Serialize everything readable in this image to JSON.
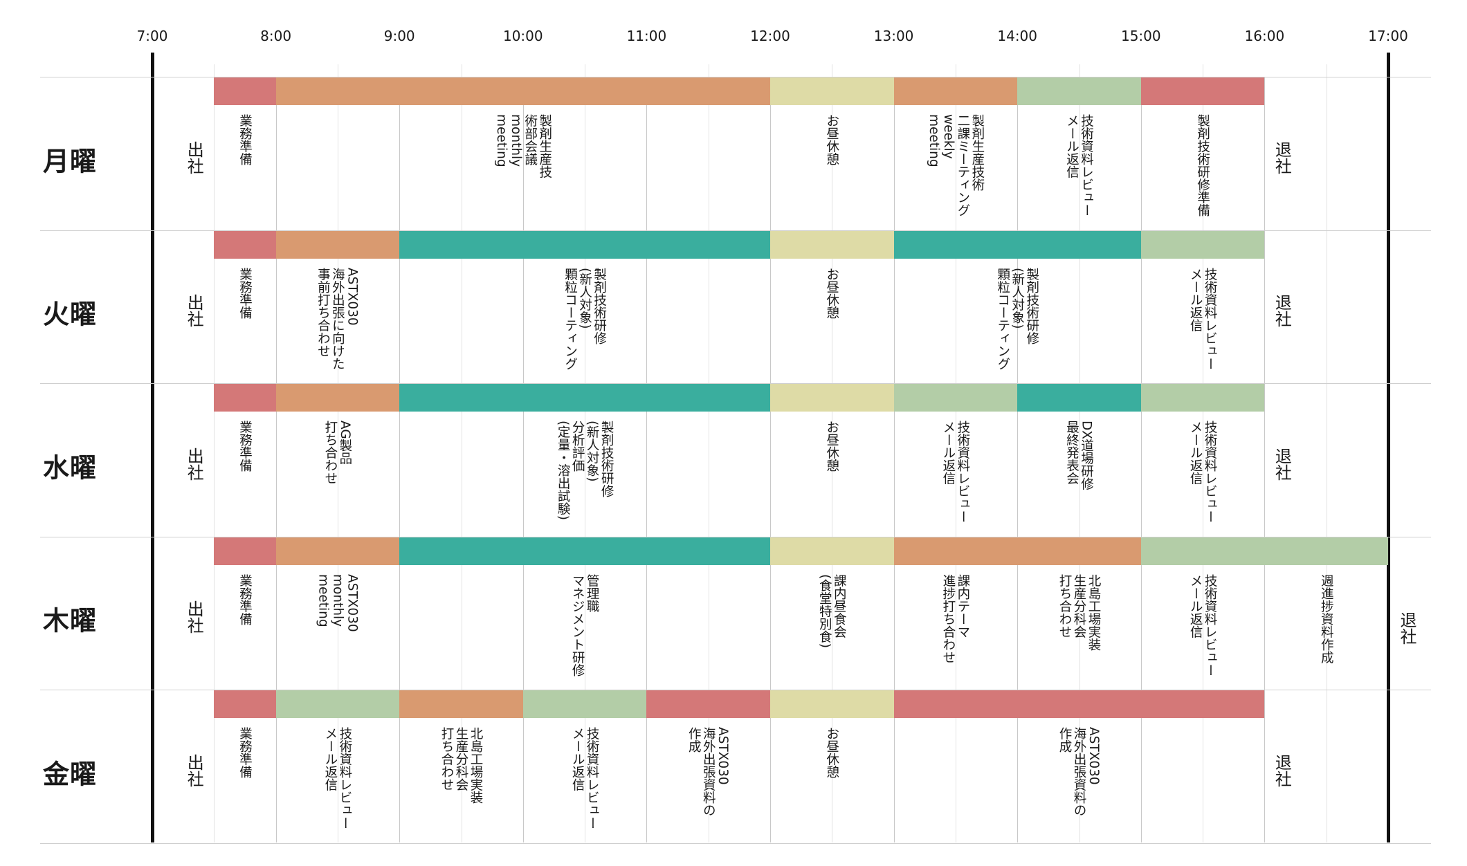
{
  "time_axis": {
    "ticks": [
      "7:00",
      "8:00",
      "9:00",
      "10:00",
      "11:00",
      "12:00",
      "13:00",
      "14:00",
      "15:00",
      "16:00",
      "17:00"
    ]
  },
  "colors": {
    "red": "#d47878",
    "orange": "#d99a70",
    "green": "#b3cda7",
    "teal": "#3aae9e",
    "yellow": "#dedba6",
    "axis": "#111111"
  },
  "days": [
    {
      "name": "月曜",
      "arrive": "出社",
      "leave": "退社",
      "events": [
        {
          "start": 7.5,
          "end": 8.0,
          "color": "red",
          "lines": [
            "業務準備"
          ]
        },
        {
          "start": 8.0,
          "end": 12.0,
          "color": "orange",
          "lines": [
            "製剤生産技",
            "術部会議",
            "monthly",
            "meeting"
          ]
        },
        {
          "start": 12.0,
          "end": 13.0,
          "color": "yellow",
          "lines": [
            "お昼休憩"
          ]
        },
        {
          "start": 13.0,
          "end": 14.0,
          "color": "orange",
          "lines": [
            "製剤生産技術",
            "二課ミーティング",
            "weekly",
            "meeting"
          ]
        },
        {
          "start": 14.0,
          "end": 15.0,
          "color": "green",
          "lines": [
            "技術資料レビュー",
            "メール返信"
          ]
        },
        {
          "start": 15.0,
          "end": 16.0,
          "color": "red",
          "lines": [
            "製剤技術研修準備"
          ]
        }
      ]
    },
    {
      "name": "火曜",
      "arrive": "出社",
      "leave": "退社",
      "events": [
        {
          "start": 7.5,
          "end": 8.0,
          "color": "red",
          "lines": [
            "業務準備"
          ]
        },
        {
          "start": 8.0,
          "end": 9.0,
          "color": "orange",
          "lines": [
            "ASTX030",
            "海外出張に向けた",
            "事前打ち合わせ"
          ]
        },
        {
          "start": 9.0,
          "end": 12.0,
          "color": "teal",
          "lines": [
            "製剤技術研修",
            "(新人対象)",
            "顆粒コーティング"
          ]
        },
        {
          "start": 12.0,
          "end": 13.0,
          "color": "yellow",
          "lines": [
            "お昼休憩"
          ]
        },
        {
          "start": 13.0,
          "end": 15.0,
          "color": "teal",
          "lines": [
            "製剤技術研修",
            "(新人対象)",
            "顆粒コーティング"
          ]
        },
        {
          "start": 15.0,
          "end": 16.0,
          "color": "green",
          "lines": [
            "技術資料レビュー",
            "メール返信"
          ]
        }
      ]
    },
    {
      "name": "水曜",
      "arrive": "出社",
      "leave": "退社",
      "events": [
        {
          "start": 7.5,
          "end": 8.0,
          "color": "red",
          "lines": [
            "業務準備"
          ]
        },
        {
          "start": 8.0,
          "end": 9.0,
          "color": "orange",
          "lines": [
            "AG製品",
            "打ち合わせ"
          ]
        },
        {
          "start": 9.0,
          "end": 12.0,
          "color": "teal",
          "lines": [
            "製剤技術研修",
            "(新人対象)",
            "分析評価",
            "(定量・溶出試験)"
          ]
        },
        {
          "start": 12.0,
          "end": 13.0,
          "color": "yellow",
          "lines": [
            "お昼休憩"
          ]
        },
        {
          "start": 13.0,
          "end": 14.0,
          "color": "green",
          "lines": [
            "技術資料レビュー",
            "メール返信"
          ]
        },
        {
          "start": 14.0,
          "end": 15.0,
          "color": "teal",
          "lines": [
            "DX道場研修",
            "最終発表会"
          ]
        },
        {
          "start": 15.0,
          "end": 16.0,
          "color": "green",
          "lines": [
            "技術資料レビュー",
            "メール返信"
          ]
        }
      ]
    },
    {
      "name": "木曜",
      "arrive": "出社",
      "leave": "退社",
      "events": [
        {
          "start": 7.5,
          "end": 8.0,
          "color": "red",
          "lines": [
            "業務準備"
          ]
        },
        {
          "start": 8.0,
          "end": 9.0,
          "color": "orange",
          "lines": [
            "ASTX030",
            "monthly",
            "meeting"
          ]
        },
        {
          "start": 9.0,
          "end": 12.0,
          "color": "teal",
          "lines": [
            "管理職",
            "マネジメント研修"
          ]
        },
        {
          "start": 12.0,
          "end": 13.0,
          "color": "yellow",
          "lines": [
            "課内昼食会",
            "(食堂特別食)"
          ]
        },
        {
          "start": 13.0,
          "end": 14.0,
          "color": "orange",
          "lines": [
            "課内テーマ",
            "進捗打ち合わせ"
          ]
        },
        {
          "start": 14.0,
          "end": 15.0,
          "color": "orange",
          "lines": [
            "北島工場実装",
            "生産分科会",
            "打ち合わせ"
          ]
        },
        {
          "start": 15.0,
          "end": 16.0,
          "color": "green",
          "lines": [
            "技術資料レビュー",
            "メール返信"
          ]
        },
        {
          "start": 16.0,
          "end": 17.0,
          "color": "green",
          "lines": [
            "週進捗資料作成"
          ]
        }
      ]
    },
    {
      "name": "金曜",
      "arrive": "出社",
      "leave": "退社",
      "events": [
        {
          "start": 7.5,
          "end": 8.0,
          "color": "red",
          "lines": [
            "業務準備"
          ]
        },
        {
          "start": 8.0,
          "end": 9.0,
          "color": "green",
          "lines": [
            "技術資料レビュー",
            "メール返信"
          ]
        },
        {
          "start": 9.0,
          "end": 10.0,
          "color": "orange",
          "lines": [
            "北島工場実装",
            "生産分科会",
            "打ち合わせ"
          ]
        },
        {
          "start": 10.0,
          "end": 11.0,
          "color": "green",
          "lines": [
            "技術資料レビュー",
            "メール返信"
          ]
        },
        {
          "start": 11.0,
          "end": 12.0,
          "color": "red",
          "lines": [
            "ASTX030",
            "海外出張資料の",
            "作成"
          ]
        },
        {
          "start": 12.0,
          "end": 13.0,
          "color": "yellow",
          "lines": [
            "お昼休憩"
          ]
        },
        {
          "start": 13.0,
          "end": 16.0,
          "color": "red",
          "lines": [
            "ASTX030",
            "海外出張資料の",
            "作成"
          ]
        }
      ]
    }
  ]
}
